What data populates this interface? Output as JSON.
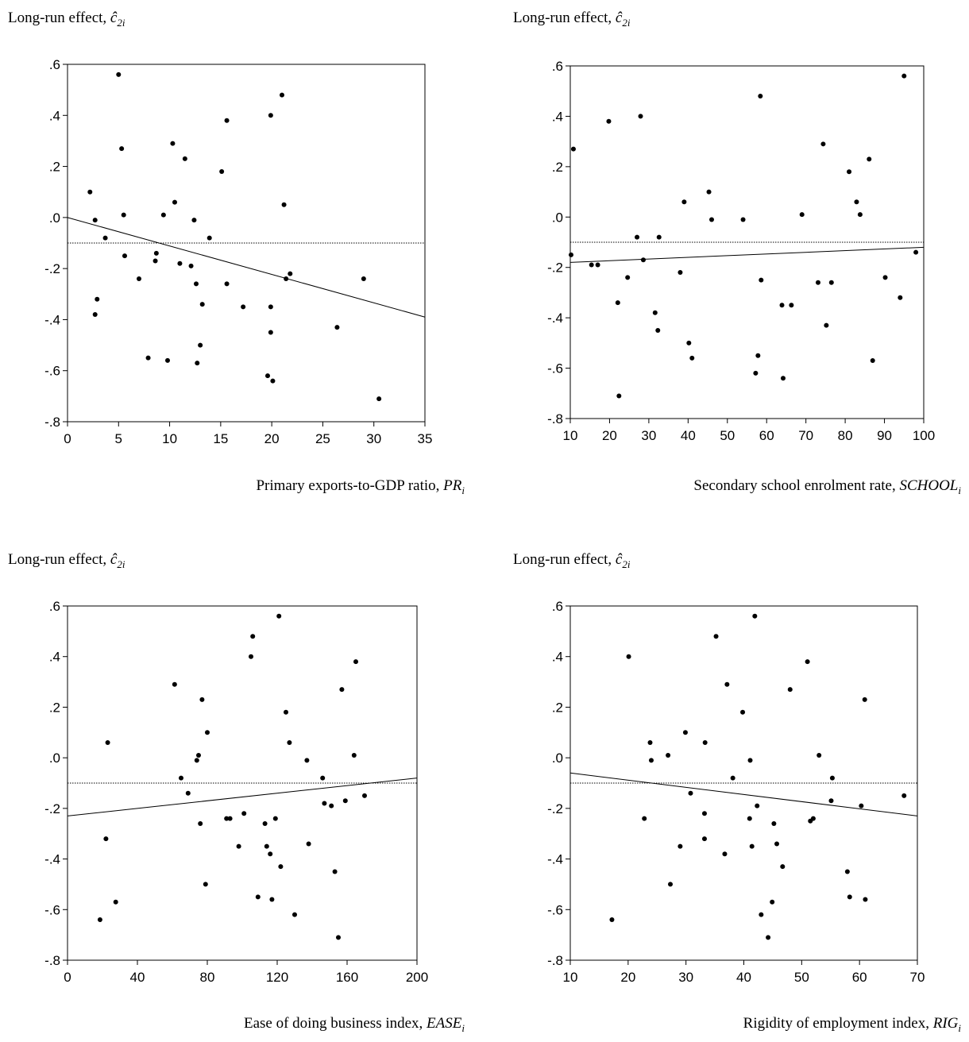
{
  "chart_data": [
    {
      "type": "scatter",
      "ylabel_main": "Long-run effect,",
      "ylabel_symbol": "ĉ",
      "ylabel_sub": "2i",
      "xlabel_main": "Primary exports-to-GDP ratio,",
      "xlabel_var": "PR",
      "xlabel_sub": "i",
      "xlim": [
        0,
        35
      ],
      "ylim": [
        -0.8,
        0.6
      ],
      "xticks": [
        0,
        5,
        10,
        15,
        20,
        25,
        30,
        35
      ],
      "xtick_labels": [
        "0",
        "5",
        "10",
        "15",
        "20",
        "25",
        "30",
        "35"
      ],
      "yticks": [
        0.6,
        0.4,
        0.2,
        0.0,
        -0.2,
        -0.4,
        -0.6,
        -0.8
      ],
      "ytick_labels": [
        ".6",
        ".4",
        ".2",
        ".0",
        "-.2",
        "-.4",
        "-.6",
        "-.8"
      ],
      "mean_line": -0.1,
      "fit_line": [
        [
          0,
          0.0
        ],
        [
          35,
          -0.39
        ]
      ],
      "points": [
        [
          2.2,
          0.1
        ],
        [
          2.7,
          -0.01
        ],
        [
          2.7,
          -0.38
        ],
        [
          2.9,
          -0.32
        ],
        [
          3.7,
          -0.08
        ],
        [
          5.0,
          0.56
        ],
        [
          5.3,
          0.27
        ],
        [
          5.5,
          0.01
        ],
        [
          5.6,
          -0.15
        ],
        [
          7.0,
          -0.24
        ],
        [
          7.9,
          -0.55
        ],
        [
          8.6,
          -0.17
        ],
        [
          8.7,
          -0.14
        ],
        [
          9.4,
          0.01
        ],
        [
          9.8,
          -0.56
        ],
        [
          10.3,
          0.29
        ],
        [
          10.5,
          0.06
        ],
        [
          11.0,
          -0.18
        ],
        [
          11.5,
          0.23
        ],
        [
          12.1,
          -0.19
        ],
        [
          12.4,
          -0.01
        ],
        [
          12.6,
          -0.26
        ],
        [
          12.7,
          -0.57
        ],
        [
          13.0,
          -0.5
        ],
        [
          13.2,
          -0.34
        ],
        [
          13.9,
          -0.08
        ],
        [
          15.1,
          0.18
        ],
        [
          15.6,
          0.38
        ],
        [
          15.6,
          -0.26
        ],
        [
          17.2,
          -0.35
        ],
        [
          19.6,
          -0.62
        ],
        [
          19.9,
          0.4
        ],
        [
          19.9,
          -0.45
        ],
        [
          19.9,
          -0.35
        ],
        [
          20.1,
          -0.64
        ],
        [
          21.0,
          0.48
        ],
        [
          21.2,
          0.05
        ],
        [
          21.4,
          -0.24
        ],
        [
          21.8,
          -0.22
        ],
        [
          26.4,
          -0.43
        ],
        [
          29.0,
          -0.24
        ],
        [
          30.5,
          -0.71
        ]
      ]
    },
    {
      "type": "scatter",
      "ylabel_main": "Long-run effect,",
      "ylabel_symbol": "ĉ",
      "ylabel_sub": "2i",
      "xlabel_main": "Secondary school enrolment rate,",
      "xlabel_var": "SCHOOL",
      "xlabel_sub": "i",
      "xlim": [
        10,
        100
      ],
      "ylim": [
        -0.8,
        0.6
      ],
      "xticks": [
        10,
        20,
        30,
        40,
        50,
        60,
        70,
        80,
        90,
        100
      ],
      "xtick_labels": [
        "10",
        "20",
        "30",
        "40",
        "50",
        "60",
        "70",
        "80",
        "90",
        "100"
      ],
      "yticks": [
        0.6,
        0.4,
        0.2,
        0.0,
        -0.2,
        -0.4,
        -0.6,
        -0.8
      ],
      "ytick_labels": [
        ".6",
        ".4",
        ".2",
        ".0",
        "-.2",
        "-.4",
        "-.6",
        "-.8"
      ],
      "mean_line": -0.1,
      "fit_line": [
        [
          10,
          -0.18
        ],
        [
          100,
          -0.12
        ]
      ],
      "points": [
        [
          10.2,
          -0.15
        ],
        [
          10.8,
          0.27
        ],
        [
          15.4,
          -0.19
        ],
        [
          17.0,
          -0.19
        ],
        [
          19.8,
          0.38
        ],
        [
          22.1,
          -0.34
        ],
        [
          22.4,
          -0.71
        ],
        [
          24.6,
          -0.24
        ],
        [
          27.0,
          -0.08
        ],
        [
          27.9,
          0.4
        ],
        [
          28.6,
          -0.17
        ],
        [
          31.6,
          -0.38
        ],
        [
          32.3,
          -0.45
        ],
        [
          32.6,
          -0.08
        ],
        [
          38.0,
          -0.22
        ],
        [
          39.0,
          0.06
        ],
        [
          40.2,
          -0.5
        ],
        [
          41.0,
          -0.56
        ],
        [
          45.3,
          0.1
        ],
        [
          46.0,
          -0.01
        ],
        [
          54.0,
          -0.01
        ],
        [
          57.2,
          -0.62
        ],
        [
          57.8,
          -0.55
        ],
        [
          58.4,
          0.48
        ],
        [
          58.6,
          -0.25
        ],
        [
          63.9,
          -0.35
        ],
        [
          64.2,
          -0.64
        ],
        [
          66.3,
          -0.35
        ],
        [
          69.0,
          0.01
        ],
        [
          73.1,
          -0.26
        ],
        [
          74.4,
          0.29
        ],
        [
          75.2,
          -0.43
        ],
        [
          76.5,
          -0.26
        ],
        [
          81.0,
          0.18
        ],
        [
          82.9,
          0.06
        ],
        [
          83.8,
          0.01
        ],
        [
          86.1,
          0.23
        ],
        [
          87.0,
          -0.57
        ],
        [
          90.2,
          -0.24
        ],
        [
          94.0,
          -0.32
        ],
        [
          95.0,
          0.56
        ],
        [
          98.0,
          -0.14
        ]
      ]
    },
    {
      "type": "scatter",
      "ylabel_main": "Long-run effect,",
      "ylabel_symbol": "ĉ",
      "ylabel_sub": "2i",
      "xlabel_main": "Ease of doing business index,",
      "xlabel_var": "EASE",
      "xlabel_sub": "i",
      "xlim": [
        0,
        200
      ],
      "ylim": [
        -0.8,
        0.6
      ],
      "xticks": [
        0,
        40,
        80,
        120,
        160,
        200
      ],
      "xtick_labels": [
        "0",
        "40",
        "80",
        "120",
        "160",
        "200"
      ],
      "yticks": [
        0.6,
        0.4,
        0.2,
        0.0,
        -0.2,
        -0.4,
        -0.6,
        -0.8
      ],
      "ytick_labels": [
        ".6",
        ".4",
        ".2",
        ".0",
        "-.2",
        "-.4",
        "-.6",
        "-.8"
      ],
      "mean_line": -0.1,
      "fit_line": [
        [
          0,
          -0.23
        ],
        [
          200,
          -0.08
        ]
      ],
      "points": [
        [
          18.6,
          -0.64
        ],
        [
          22.0,
          -0.32
        ],
        [
          23.0,
          0.06
        ],
        [
          27.6,
          -0.57
        ],
        [
          61.3,
          0.29
        ],
        [
          65.0,
          -0.08
        ],
        [
          69.0,
          -0.14
        ],
        [
          74.0,
          -0.01
        ],
        [
          75.0,
          0.01
        ],
        [
          76.0,
          -0.26
        ],
        [
          77.0,
          0.23
        ],
        [
          79.0,
          -0.5
        ],
        [
          80.0,
          0.1
        ],
        [
          91.0,
          -0.24
        ],
        [
          93.0,
          -0.24
        ],
        [
          98.0,
          -0.35
        ],
        [
          101.0,
          -0.22
        ],
        [
          105.0,
          0.4
        ],
        [
          106.0,
          0.48
        ],
        [
          109.0,
          -0.55
        ],
        [
          113.0,
          -0.26
        ],
        [
          114.0,
          -0.35
        ],
        [
          116.0,
          -0.38
        ],
        [
          117.0,
          -0.56
        ],
        [
          119.0,
          -0.24
        ],
        [
          121.0,
          0.56
        ],
        [
          122.0,
          -0.43
        ],
        [
          125.0,
          0.18
        ],
        [
          127.0,
          0.06
        ],
        [
          130.0,
          -0.62
        ],
        [
          137.0,
          -0.01
        ],
        [
          138.0,
          -0.34
        ],
        [
          146.0,
          -0.08
        ],
        [
          147.0,
          -0.18
        ],
        [
          151.0,
          -0.19
        ],
        [
          153.0,
          -0.45
        ],
        [
          155.0,
          -0.71
        ],
        [
          157.0,
          0.27
        ],
        [
          159.0,
          -0.17
        ],
        [
          164.0,
          0.01
        ],
        [
          165.0,
          0.38
        ],
        [
          170.0,
          -0.15
        ]
      ]
    },
    {
      "type": "scatter",
      "ylabel_main": "Long-run effect,",
      "ylabel_symbol": "ĉ",
      "ylabel_sub": "2i",
      "xlabel_main": "Rigidity of employment index,",
      "xlabel_var": "RIG",
      "xlabel_sub": "i",
      "xlim": [
        10,
        70
      ],
      "ylim": [
        -0.8,
        0.6
      ],
      "xticks": [
        10,
        20,
        30,
        40,
        50,
        60,
        70
      ],
      "xtick_labels": [
        "10",
        "20",
        "30",
        "40",
        "50",
        "60",
        "70"
      ],
      "yticks": [
        0.6,
        0.4,
        0.2,
        0.0,
        -0.2,
        -0.4,
        -0.6,
        -0.8
      ],
      "ytick_labels": [
        ".6",
        ".4",
        ".2",
        ".0",
        "-.2",
        "-.4",
        "-.6",
        "-.8"
      ],
      "mean_line": -0.1,
      "fit_line": [
        [
          10,
          -0.06
        ],
        [
          70,
          -0.23
        ]
      ],
      "points": [
        [
          17.2,
          -0.64
        ],
        [
          20.1,
          0.4
        ],
        [
          22.8,
          -0.24
        ],
        [
          23.8,
          0.06
        ],
        [
          24.0,
          -0.01
        ],
        [
          26.9,
          0.01
        ],
        [
          27.3,
          -0.5
        ],
        [
          29.0,
          -0.35
        ],
        [
          29.9,
          0.1
        ],
        [
          30.8,
          -0.14
        ],
        [
          33.2,
          -0.32
        ],
        [
          33.2,
          -0.22
        ],
        [
          33.3,
          0.06
        ],
        [
          35.2,
          0.48
        ],
        [
          36.7,
          -0.38
        ],
        [
          37.1,
          0.29
        ],
        [
          38.1,
          -0.08
        ],
        [
          39.8,
          0.18
        ],
        [
          41.0,
          -0.24
        ],
        [
          41.1,
          -0.01
        ],
        [
          41.4,
          -0.35
        ],
        [
          41.9,
          0.56
        ],
        [
          42.3,
          -0.19
        ],
        [
          43.0,
          -0.62
        ],
        [
          44.2,
          -0.71
        ],
        [
          44.9,
          -0.57
        ],
        [
          45.2,
          -0.26
        ],
        [
          45.7,
          -0.34
        ],
        [
          46.7,
          -0.43
        ],
        [
          48.0,
          0.27
        ],
        [
          52.0,
          -0.24
        ],
        [
          53.0,
          0.01
        ],
        [
          51.0,
          0.38
        ],
        [
          51.5,
          -0.25
        ],
        [
          55.1,
          -0.17
        ],
        [
          55.3,
          -0.08
        ],
        [
          57.9,
          -0.45
        ],
        [
          58.3,
          -0.55
        ],
        [
          60.3,
          -0.19
        ],
        [
          60.9,
          0.23
        ],
        [
          61.0,
          -0.56
        ],
        [
          67.7,
          -0.15
        ]
      ]
    }
  ]
}
